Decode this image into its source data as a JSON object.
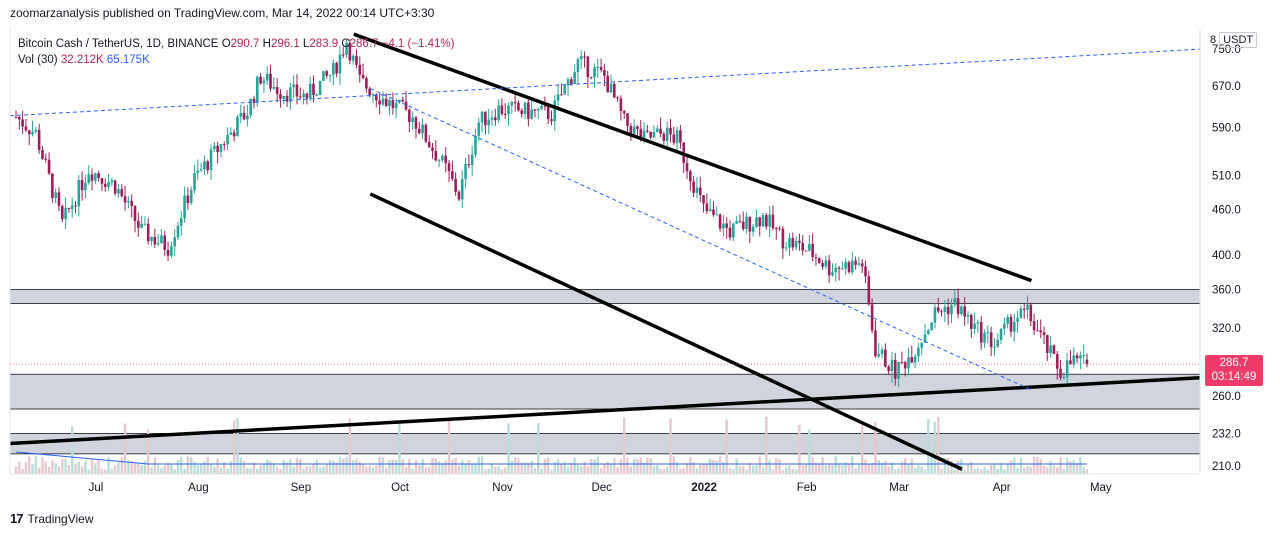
{
  "header": {
    "published": "zoomarzanalysis published on TradingView.com, Mar 14, 2022 00:14 UTC+3:30"
  },
  "legend": {
    "symbol": "Bitcoin Cash / TetherUS, 1D, BINANCE",
    "o_label": "O",
    "o": "290.7",
    "h_label": "H",
    "h": "296.1",
    "l_label": "L",
    "l": "283.9",
    "c_label": "C",
    "c": "286.7",
    "change": "−4.1 (−1.41%)",
    "vol_label": "Vol (30)",
    "vol": "32.212K",
    "vol_ma": "65.175K"
  },
  "price_scale": {
    "currency": "USDT",
    "log_prefix": "8"
  },
  "current": {
    "price": "286.7",
    "countdown": "03:14:49"
  },
  "footer": {
    "brand": "TradingView",
    "logo_text": "17"
  },
  "colors": {
    "up": "#26a69a",
    "down": "#9c1e5a",
    "volume": "#e6c9cf",
    "trend": "#000000",
    "dashed": "#2962ff",
    "zone": "#d1d4dc",
    "current_label": "#ef3b6a"
  },
  "chart_data": {
    "type": "candlestick",
    "title": "Bitcoin Cash / TetherUS, 1D, BINANCE",
    "y_scale": "log",
    "ylim": [
      205,
      800
    ],
    "y_ticks": [
      210,
      232,
      260,
      286.7,
      320,
      360,
      400,
      460,
      510,
      590,
      670,
      750
    ],
    "x_ticks": [
      "Jul",
      "Aug",
      "Sep",
      "Oct",
      "Nov",
      "Dec",
      "2022",
      "Feb",
      "Mar",
      "Apr",
      "May"
    ],
    "ohlc_close_path": [
      [
        0,
        610
      ],
      [
        6,
        580
      ],
      [
        14,
        440
      ],
      [
        22,
        520
      ],
      [
        30,
        495
      ],
      [
        38,
        430
      ],
      [
        46,
        410
      ],
      [
        54,
        505
      ],
      [
        62,
        560
      ],
      [
        70,
        620
      ],
      [
        74,
        690
      ],
      [
        80,
        660
      ],
      [
        88,
        650
      ],
      [
        96,
        700
      ],
      [
        100,
        770
      ],
      [
        104,
        680
      ],
      [
        112,
        640
      ],
      [
        120,
        610
      ],
      [
        130,
        520
      ],
      [
        134,
        480
      ],
      [
        140,
        600
      ],
      [
        146,
        625
      ],
      [
        154,
        620
      ],
      [
        162,
        615
      ],
      [
        170,
        720
      ],
      [
        178,
        690
      ],
      [
        184,
        600
      ],
      [
        190,
        570
      ],
      [
        196,
        580
      ],
      [
        200,
        570
      ],
      [
        208,
        460
      ],
      [
        216,
        430
      ],
      [
        226,
        450
      ],
      [
        232,
        420
      ],
      [
        240,
        405
      ],
      [
        246,
        385
      ],
      [
        256,
        390
      ],
      [
        260,
        300
      ],
      [
        266,
        280
      ],
      [
        272,
        300
      ],
      [
        278,
        335
      ],
      [
        284,
        345
      ],
      [
        290,
        320
      ],
      [
        296,
        305
      ],
      [
        302,
        330
      ],
      [
        306,
        335
      ],
      [
        312,
        300
      ],
      [
        316,
        280
      ],
      [
        320,
        290
      ],
      [
        324,
        286.7
      ]
    ],
    "volume_ma_label": "Vol (30)",
    "last": {
      "o": 290.7,
      "h": 296.1,
      "l": 283.9,
      "c": 286.7
    },
    "zones": [
      [
        345,
        360
      ],
      [
        250,
        278
      ],
      [
        218,
        232
      ]
    ],
    "trendlines": [
      {
        "style": "solid",
        "from": [
          "2021-09-17",
          785
        ],
        "to": [
          "2022-04-10",
          370
        ]
      },
      {
        "style": "solid",
        "from": [
          "2021-09-22",
          482
        ],
        "to": [
          "2022-03-20",
          208
        ]
      },
      {
        "style": "solid",
        "from": [
          "2021-06-05",
          225
        ],
        "to": [
          "2022-05-31",
          275
        ]
      },
      {
        "style": "dashed",
        "from": [
          "2021-06-05",
          612
        ],
        "to": [
          "2022-05-31",
          750
        ]
      },
      {
        "style": "dashed",
        "from": [
          "2021-09-22",
          665
        ],
        "to": [
          "2022-04-10",
          265
        ]
      }
    ]
  }
}
